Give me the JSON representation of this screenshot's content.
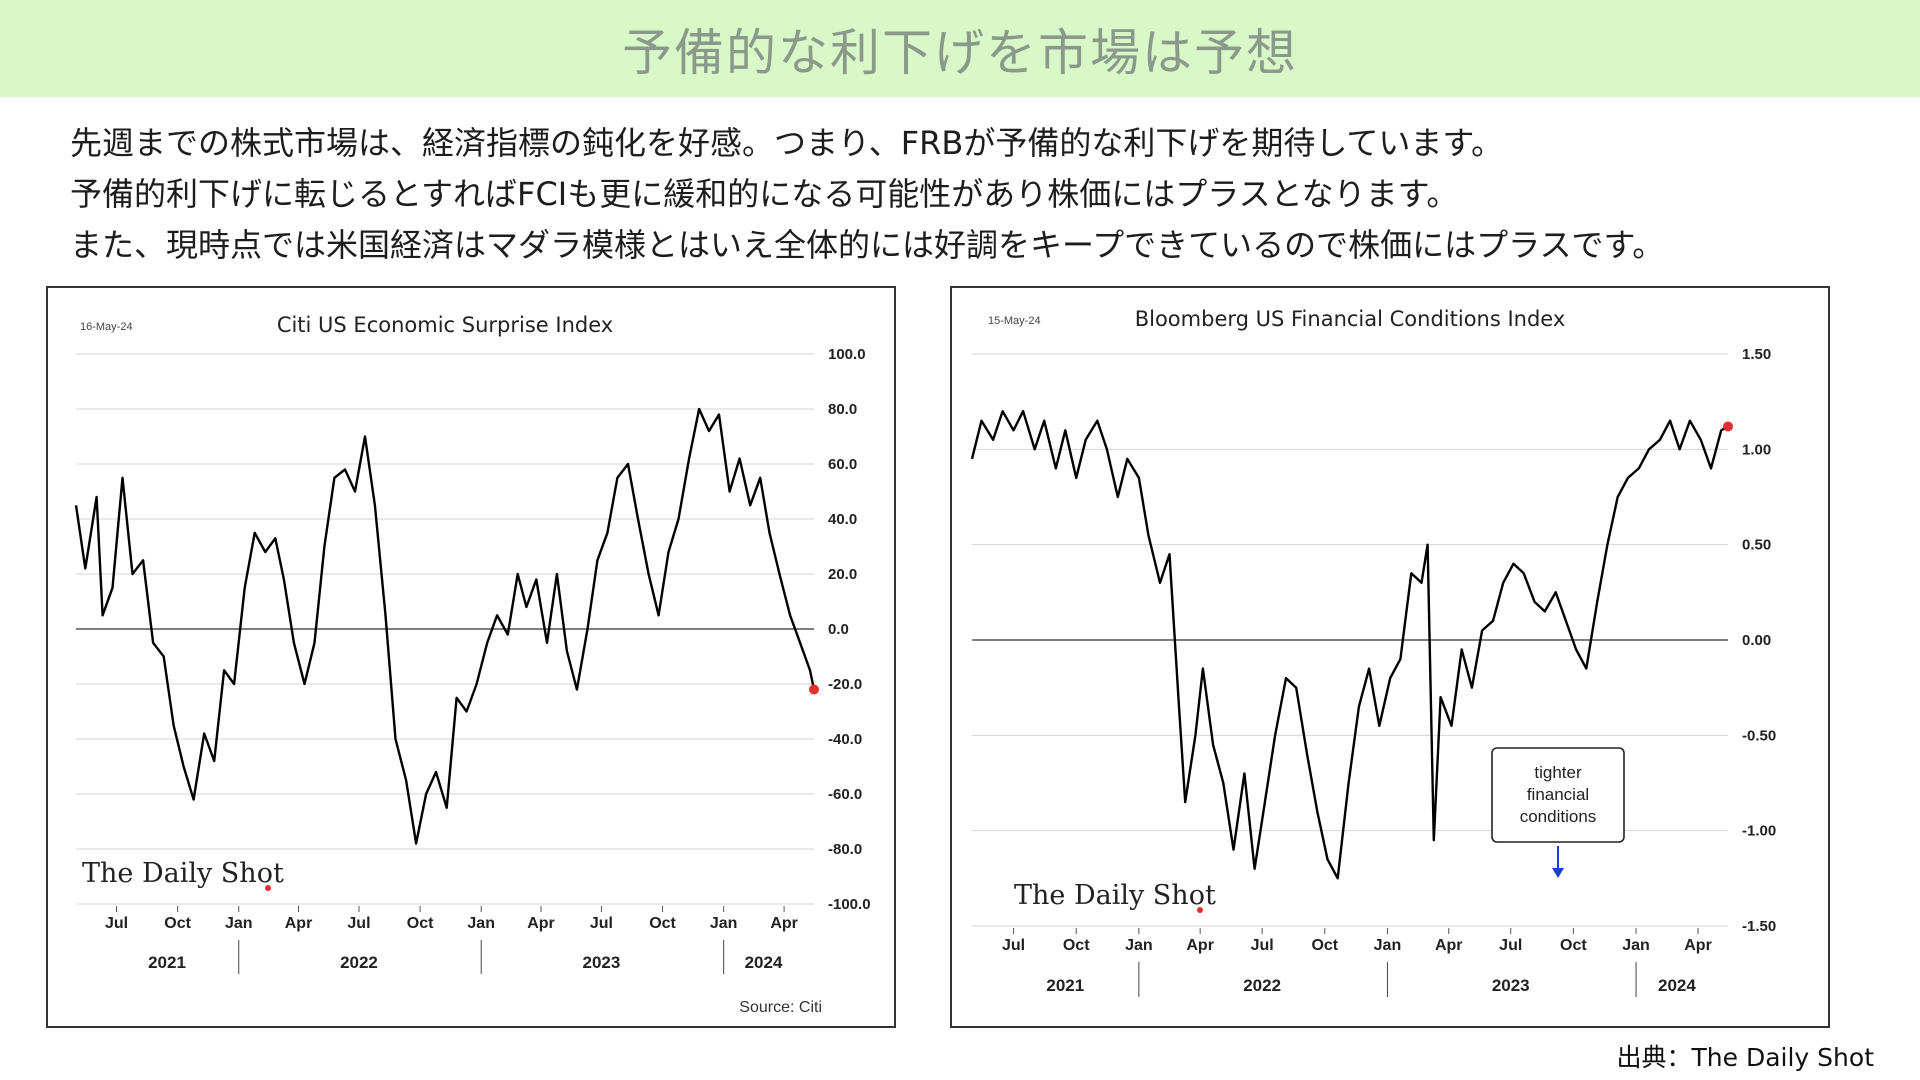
{
  "header": {
    "title": "予備的な利下げを市場は予想"
  },
  "body": {
    "lines": [
      "先週までの株式市場は、経済指標の鈍化を好感。つまり、FRBが予備的な利下げを期待しています。",
      "予備的利下げに転じるとすればFCIも更に緩和的になる可能性があり株価にはプラスとなります。",
      "また、現時点では米国経済はマダラ模様とはいえ全体的には好調をキープできているので株価にはプラスです。"
    ]
  },
  "footer": {
    "credit": "出典：The Daily Shot"
  },
  "colors": {
    "banner_bg": "#d9f8c8",
    "line": "#000000",
    "endpoint": "#e03030",
    "annotation_arrow": "#1a3fd9"
  },
  "chart_data": [
    {
      "type": "line",
      "title": "Citi US Economic Surprise Index",
      "date_label": "16-May-24",
      "source": "Source: Citi",
      "watermark": "The Daily Shot",
      "x_start": "2021-05",
      "x_end": "2024-05-16",
      "ylim": [
        -100,
        100
      ],
      "yticks": [
        "100.0",
        "80.0",
        "60.0",
        "40.0",
        "20.0",
        "0.0",
        "-20.0",
        "-40.0",
        "-60.0",
        "-80.0",
        "-100.0"
      ],
      "month_ticks": [
        "Jul",
        "Oct",
        "Jan",
        "Apr",
        "Jul",
        "Oct",
        "Jan",
        "Apr",
        "Jul",
        "Oct",
        "Jan",
        "Apr"
      ],
      "year_ticks": [
        "2021",
        "2022",
        "2023",
        "2024"
      ],
      "grid": true,
      "series": [
        {
          "values": [
            {
              "x": "2021-05-01",
              "y": 45
            },
            {
              "x": "2021-05-15",
              "y": 22
            },
            {
              "x": "2021-06-01",
              "y": 48
            },
            {
              "x": "2021-06-10",
              "y": 5
            },
            {
              "x": "2021-06-25",
              "y": 15
            },
            {
              "x": "2021-07-10",
              "y": 55
            },
            {
              "x": "2021-07-25",
              "y": 20
            },
            {
              "x": "2021-08-10",
              "y": 25
            },
            {
              "x": "2021-08-25",
              "y": -5
            },
            {
              "x": "2021-09-10",
              "y": -10
            },
            {
              "x": "2021-09-25",
              "y": -35
            },
            {
              "x": "2021-10-10",
              "y": -50
            },
            {
              "x": "2021-10-25",
              "y": -62
            },
            {
              "x": "2021-11-10",
              "y": -38
            },
            {
              "x": "2021-11-25",
              "y": -48
            },
            {
              "x": "2021-12-10",
              "y": -15
            },
            {
              "x": "2021-12-25",
              "y": -20
            },
            {
              "x": "2022-01-10",
              "y": 15
            },
            {
              "x": "2022-01-25",
              "y": 35
            },
            {
              "x": "2022-02-10",
              "y": 28
            },
            {
              "x": "2022-02-25",
              "y": 33
            },
            {
              "x": "2022-03-10",
              "y": 18
            },
            {
              "x": "2022-03-25",
              "y": -5
            },
            {
              "x": "2022-04-10",
              "y": -20
            },
            {
              "x": "2022-04-25",
              "y": -5
            },
            {
              "x": "2022-05-10",
              "y": 30
            },
            {
              "x": "2022-05-25",
              "y": 55
            },
            {
              "x": "2022-06-10",
              "y": 58
            },
            {
              "x": "2022-06-25",
              "y": 50
            },
            {
              "x": "2022-07-10",
              "y": 70
            },
            {
              "x": "2022-07-25",
              "y": 45
            },
            {
              "x": "2022-08-10",
              "y": 5
            },
            {
              "x": "2022-08-25",
              "y": -40
            },
            {
              "x": "2022-09-10",
              "y": -55
            },
            {
              "x": "2022-09-25",
              "y": -78
            },
            {
              "x": "2022-10-10",
              "y": -60
            },
            {
              "x": "2022-10-25",
              "y": -52
            },
            {
              "x": "2022-11-10",
              "y": -65
            },
            {
              "x": "2022-11-25",
              "y": -25
            },
            {
              "x": "2022-12-10",
              "y": -30
            },
            {
              "x": "2022-12-25",
              "y": -20
            },
            {
              "x": "2023-01-10",
              "y": -5
            },
            {
              "x": "2023-01-25",
              "y": 5
            },
            {
              "x": "2023-02-10",
              "y": -2
            },
            {
              "x": "2023-02-25",
              "y": 20
            },
            {
              "x": "2023-03-10",
              "y": 8
            },
            {
              "x": "2023-03-25",
              "y": 18
            },
            {
              "x": "2023-04-10",
              "y": -5
            },
            {
              "x": "2023-04-25",
              "y": 20
            },
            {
              "x": "2023-05-10",
              "y": -8
            },
            {
              "x": "2023-05-25",
              "y": -22
            },
            {
              "x": "2023-06-10",
              "y": 0
            },
            {
              "x": "2023-06-25",
              "y": 25
            },
            {
              "x": "2023-07-10",
              "y": 35
            },
            {
              "x": "2023-07-25",
              "y": 55
            },
            {
              "x": "2023-08-10",
              "y": 60
            },
            {
              "x": "2023-08-25",
              "y": 40
            },
            {
              "x": "2023-09-10",
              "y": 20
            },
            {
              "x": "2023-09-25",
              "y": 5
            },
            {
              "x": "2023-10-10",
              "y": 28
            },
            {
              "x": "2023-10-25",
              "y": 40
            },
            {
              "x": "2023-11-10",
              "y": 62
            },
            {
              "x": "2023-11-25",
              "y": 80
            },
            {
              "x": "2023-12-10",
              "y": 72
            },
            {
              "x": "2023-12-25",
              "y": 78
            },
            {
              "x": "2024-01-10",
              "y": 50
            },
            {
              "x": "2024-01-25",
              "y": 62
            },
            {
              "x": "2024-02-10",
              "y": 45
            },
            {
              "x": "2024-02-25",
              "y": 55
            },
            {
              "x": "2024-03-10",
              "y": 35
            },
            {
              "x": "2024-03-25",
              "y": 20
            },
            {
              "x": "2024-04-10",
              "y": 5
            },
            {
              "x": "2024-04-25",
              "y": -5
            },
            {
              "x": "2024-05-10",
              "y": -15
            },
            {
              "x": "2024-05-16",
              "y": -22
            }
          ]
        }
      ]
    },
    {
      "type": "line",
      "title": "Bloomberg US Financial Conditions Index",
      "date_label": "15-May-24",
      "watermark": "The Daily Shot",
      "annotation": "tighter financial conditions",
      "x_start": "2021-05",
      "x_end": "2024-05-15",
      "ylim": [
        -1.5,
        1.5
      ],
      "yticks": [
        "1.50",
        "1.00",
        "0.50",
        "0.00",
        "-0.50",
        "-1.00",
        "-1.50"
      ],
      "month_ticks": [
        "Jul",
        "Oct",
        "Jan",
        "Apr",
        "Jul",
        "Oct",
        "Jan",
        "Apr",
        "Jul",
        "Oct",
        "Jan",
        "Apr"
      ],
      "year_ticks": [
        "2021",
        "2022",
        "2023",
        "2024"
      ],
      "grid": true,
      "series": [
        {
          "values": [
            {
              "x": "2021-05-01",
              "y": 0.95
            },
            {
              "x": "2021-05-15",
              "y": 1.15
            },
            {
              "x": "2021-06-01",
              "y": 1.05
            },
            {
              "x": "2021-06-15",
              "y": 1.2
            },
            {
              "x": "2021-07-01",
              "y": 1.1
            },
            {
              "x": "2021-07-15",
              "y": 1.2
            },
            {
              "x": "2021-08-01",
              "y": 1.0
            },
            {
              "x": "2021-08-15",
              "y": 1.15
            },
            {
              "x": "2021-09-01",
              "y": 0.9
            },
            {
              "x": "2021-09-15",
              "y": 1.1
            },
            {
              "x": "2021-10-01",
              "y": 0.85
            },
            {
              "x": "2021-10-15",
              "y": 1.05
            },
            {
              "x": "2021-11-01",
              "y": 1.15
            },
            {
              "x": "2021-11-15",
              "y": 1.0
            },
            {
              "x": "2021-12-01",
              "y": 0.75
            },
            {
              "x": "2021-12-15",
              "y": 0.95
            },
            {
              "x": "2022-01-01",
              "y": 0.85
            },
            {
              "x": "2022-01-15",
              "y": 0.55
            },
            {
              "x": "2022-02-01",
              "y": 0.3
            },
            {
              "x": "2022-02-15",
              "y": 0.45
            },
            {
              "x": "2022-03-01",
              "y": -0.35
            },
            {
              "x": "2022-03-10",
              "y": -0.85
            },
            {
              "x": "2022-03-25",
              "y": -0.5
            },
            {
              "x": "2022-04-05",
              "y": -0.15
            },
            {
              "x": "2022-04-20",
              "y": -0.55
            },
            {
              "x": "2022-05-05",
              "y": -0.75
            },
            {
              "x": "2022-05-20",
              "y": -1.1
            },
            {
              "x": "2022-06-05",
              "y": -0.7
            },
            {
              "x": "2022-06-20",
              "y": -1.2
            },
            {
              "x": "2022-07-05",
              "y": -0.85
            },
            {
              "x": "2022-07-20",
              "y": -0.5
            },
            {
              "x": "2022-08-05",
              "y": -0.2
            },
            {
              "x": "2022-08-20",
              "y": -0.25
            },
            {
              "x": "2022-09-05",
              "y": -0.6
            },
            {
              "x": "2022-09-20",
              "y": -0.9
            },
            {
              "x": "2022-10-05",
              "y": -1.15
            },
            {
              "x": "2022-10-20",
              "y": -1.25
            },
            {
              "x": "2022-11-05",
              "y": -0.75
            },
            {
              "x": "2022-11-20",
              "y": -0.35
            },
            {
              "x": "2022-12-05",
              "y": -0.15
            },
            {
              "x": "2022-12-20",
              "y": -0.45
            },
            {
              "x": "2023-01-05",
              "y": -0.2
            },
            {
              "x": "2023-01-20",
              "y": -0.1
            },
            {
              "x": "2023-02-05",
              "y": 0.35
            },
            {
              "x": "2023-02-20",
              "y": 0.3
            },
            {
              "x": "2023-03-01",
              "y": 0.5
            },
            {
              "x": "2023-03-10",
              "y": -1.05
            },
            {
              "x": "2023-03-20",
              "y": -0.3
            },
            {
              "x": "2023-04-05",
              "y": -0.45
            },
            {
              "x": "2023-04-20",
              "y": -0.05
            },
            {
              "x": "2023-05-05",
              "y": -0.25
            },
            {
              "x": "2023-05-20",
              "y": 0.05
            },
            {
              "x": "2023-06-05",
              "y": 0.1
            },
            {
              "x": "2023-06-20",
              "y": 0.3
            },
            {
              "x": "2023-07-05",
              "y": 0.4
            },
            {
              "x": "2023-07-20",
              "y": 0.35
            },
            {
              "x": "2023-08-05",
              "y": 0.2
            },
            {
              "x": "2023-08-20",
              "y": 0.15
            },
            {
              "x": "2023-09-05",
              "y": 0.25
            },
            {
              "x": "2023-09-20",
              "y": 0.1
            },
            {
              "x": "2023-10-05",
              "y": -0.05
            },
            {
              "x": "2023-10-20",
              "y": -0.15
            },
            {
              "x": "2023-11-05",
              "y": 0.2
            },
            {
              "x": "2023-11-20",
              "y": 0.5
            },
            {
              "x": "2023-12-05",
              "y": 0.75
            },
            {
              "x": "2023-12-20",
              "y": 0.85
            },
            {
              "x": "2024-01-05",
              "y": 0.9
            },
            {
              "x": "2024-01-20",
              "y": 1.0
            },
            {
              "x": "2024-02-05",
              "y": 1.05
            },
            {
              "x": "2024-02-20",
              "y": 1.15
            },
            {
              "x": "2024-03-05",
              "y": 1.0
            },
            {
              "x": "2024-03-20",
              "y": 1.15
            },
            {
              "x": "2024-04-05",
              "y": 1.05
            },
            {
              "x": "2024-04-20",
              "y": 0.9
            },
            {
              "x": "2024-05-05",
              "y": 1.1
            },
            {
              "x": "2024-05-15",
              "y": 1.12
            }
          ]
        }
      ]
    }
  ]
}
